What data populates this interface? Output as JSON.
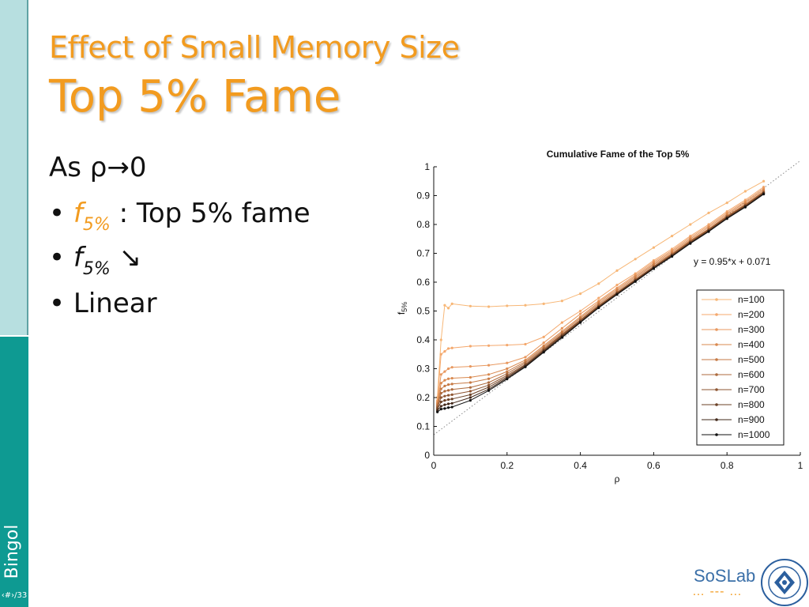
{
  "sidebar": {
    "author": "Bingol",
    "page": "‹#›/33"
  },
  "title": {
    "line1": "Effect of Small Memory Size",
    "line2": "Top 5% Fame"
  },
  "bullets": {
    "intro_as": "As ρ",
    "intro_arrow": "→0",
    "b1_bullet": "•",
    "b1_f": "f",
    "b1_sub": "5%",
    "b1_rest": ": Top 5% fame",
    "b2_bullet": "•",
    "b2_f": "f",
    "b2_sub": "5%",
    "b2_arrow": "↘",
    "b3_bullet": "•",
    "b3_text": "Linear"
  },
  "logo": {
    "name": "SoSLab",
    "dots": "… --- …",
    "seal_text": "BOĞAZİÇİ ÜNİVERSİTESİ",
    "seal_year": "1863"
  },
  "colors": {
    "accent": "#f29b1f",
    "sidebar_light": "#b7dfe0",
    "sidebar_dark": "#0e9a92"
  },
  "chart_data": {
    "type": "line",
    "title": "Cumulative Fame of the Top 5%",
    "xlabel": "ρ",
    "ylabel": "f5%",
    "xlim": [
      0,
      1
    ],
    "ylim": [
      0,
      1
    ],
    "xticks": [
      "0",
      "0.2",
      "0.4",
      "0.6",
      "0.8",
      "1"
    ],
    "yticks": [
      "0",
      "0.1",
      "0.2",
      "0.3",
      "0.4",
      "0.5",
      "0.6",
      "0.7",
      "0.8",
      "0.9",
      "1"
    ],
    "legend_position": "bottom-right",
    "annotation": "y = 0.95*x + 0.071",
    "fit_line": {
      "slope": 0.95,
      "intercept": 0.071
    },
    "x": [
      0.01,
      0.02,
      0.03,
      0.04,
      0.05,
      0.1,
      0.15,
      0.2,
      0.25,
      0.3,
      0.35,
      0.4,
      0.45,
      0.5,
      0.55,
      0.6,
      0.65,
      0.7,
      0.75,
      0.8,
      0.85,
      0.9
    ],
    "series": [
      {
        "name": "n=100",
        "color": "#f7b777",
        "values": [
          0.2,
          0.4,
          0.52,
          0.51,
          0.525,
          0.517,
          0.515,
          0.518,
          0.52,
          0.525,
          0.535,
          0.56,
          0.595,
          0.64,
          0.68,
          0.72,
          0.76,
          0.8,
          0.84,
          0.875,
          0.915,
          0.95
        ]
      },
      {
        "name": "n=200",
        "color": "#f4a86d",
        "values": [
          0.19,
          0.35,
          0.36,
          0.37,
          0.372,
          0.378,
          0.38,
          0.382,
          0.385,
          0.41,
          0.46,
          0.5,
          0.545,
          0.59,
          0.63,
          0.675,
          0.715,
          0.76,
          0.8,
          0.845,
          0.885,
          0.93
        ]
      },
      {
        "name": "n=300",
        "color": "#e8985f",
        "values": [
          0.185,
          0.28,
          0.29,
          0.3,
          0.305,
          0.308,
          0.312,
          0.32,
          0.34,
          0.39,
          0.44,
          0.49,
          0.535,
          0.58,
          0.625,
          0.67,
          0.71,
          0.755,
          0.795,
          0.84,
          0.88,
          0.925
        ]
      },
      {
        "name": "n=400",
        "color": "#d9894f",
        "values": [
          0.18,
          0.25,
          0.26,
          0.265,
          0.267,
          0.27,
          0.28,
          0.3,
          0.33,
          0.38,
          0.43,
          0.48,
          0.53,
          0.575,
          0.62,
          0.665,
          0.705,
          0.75,
          0.79,
          0.835,
          0.875,
          0.92
        ]
      },
      {
        "name": "n=500",
        "color": "#c67a45",
        "values": [
          0.175,
          0.23,
          0.24,
          0.245,
          0.247,
          0.252,
          0.265,
          0.29,
          0.325,
          0.375,
          0.425,
          0.475,
          0.525,
          0.57,
          0.615,
          0.66,
          0.7,
          0.745,
          0.785,
          0.83,
          0.87,
          0.915
        ]
      },
      {
        "name": "n=600",
        "color": "#ad6a3d",
        "values": [
          0.17,
          0.215,
          0.222,
          0.225,
          0.228,
          0.235,
          0.252,
          0.283,
          0.32,
          0.37,
          0.42,
          0.47,
          0.52,
          0.565,
          0.61,
          0.655,
          0.697,
          0.742,
          0.783,
          0.828,
          0.868,
          0.913
        ]
      },
      {
        "name": "n=700",
        "color": "#8e5632",
        "values": [
          0.165,
          0.2,
          0.205,
          0.208,
          0.21,
          0.222,
          0.243,
          0.277,
          0.315,
          0.366,
          0.417,
          0.467,
          0.517,
          0.563,
          0.608,
          0.653,
          0.695,
          0.74,
          0.781,
          0.826,
          0.866,
          0.911
        ]
      },
      {
        "name": "n=800",
        "color": "#6b4126",
        "values": [
          0.16,
          0.185,
          0.19,
          0.193,
          0.195,
          0.21,
          0.236,
          0.272,
          0.312,
          0.363,
          0.414,
          0.464,
          0.515,
          0.561,
          0.606,
          0.651,
          0.693,
          0.738,
          0.779,
          0.824,
          0.864,
          0.909
        ]
      },
      {
        "name": "n=900",
        "color": "#42281a",
        "values": [
          0.155,
          0.17,
          0.175,
          0.178,
          0.18,
          0.2,
          0.229,
          0.268,
          0.309,
          0.36,
          0.411,
          0.462,
          0.513,
          0.559,
          0.604,
          0.649,
          0.691,
          0.736,
          0.777,
          0.822,
          0.862,
          0.907
        ]
      },
      {
        "name": "n=1000",
        "color": "#111111",
        "values": [
          0.15,
          0.16,
          0.162,
          0.165,
          0.167,
          0.19,
          0.224,
          0.264,
          0.306,
          0.357,
          0.408,
          0.46,
          0.511,
          0.557,
          0.602,
          0.647,
          0.689,
          0.734,
          0.775,
          0.82,
          0.86,
          0.905
        ]
      }
    ]
  }
}
